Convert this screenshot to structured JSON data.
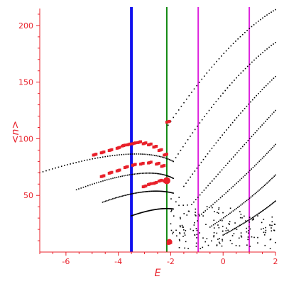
{
  "chart_data": {
    "type": "scatter",
    "xlabel": "E",
    "ylabel": "<n>",
    "xlim": [
      -7,
      2
    ],
    "ylim": [
      0,
      215
    ],
    "x_ticks": [
      -6,
      -4,
      -2,
      0,
      2
    ],
    "y_ticks": [
      50,
      100,
      150,
      200
    ],
    "colors": {
      "axis": "#e8202a",
      "black_points": "#000000",
      "red_points": "#e8202a",
      "blue_line": "#1010ee",
      "green_line": "#118811",
      "magenta_line": "#dd22dd"
    },
    "vertical_lines": [
      {
        "x": -3.5,
        "color": "#1010ee",
        "width": 4
      },
      {
        "x": -2.15,
        "color": "#118811",
        "width": 2
      },
      {
        "x": -0.95,
        "color": "#dd22dd",
        "width": 2
      },
      {
        "x": 1.0,
        "color": "#dd22dd",
        "width": 2
      }
    ],
    "branches": [
      {
        "x0": -7.0,
        "y0": 70,
        "x1": -3.3,
        "y1": 97,
        "x2": -1.9,
        "y2": 80
      },
      {
        "x0": -5.6,
        "y0": 55,
        "x1": -2.9,
        "y1": 78,
        "x1b": -2.9,
        "x2": -1.9,
        "y2": 65
      },
      {
        "x0": -4.6,
        "y0": 44,
        "x1": -2.9,
        "y1": 58,
        "x2": -1.9,
        "y2": 52
      },
      {
        "x0": -3.5,
        "y0": 32,
        "x1": -2.5,
        "y1": 40,
        "x2": -1.9,
        "y2": 38
      }
    ],
    "red_points": [
      {
        "x": -4.9,
        "y": 86
      },
      {
        "x": -4.6,
        "y": 88
      },
      {
        "x": -4.3,
        "y": 90
      },
      {
        "x": -4.0,
        "y": 92
      },
      {
        "x": -3.8,
        "y": 94
      },
      {
        "x": -3.6,
        "y": 95
      },
      {
        "x": -3.4,
        "y": 96
      },
      {
        "x": -3.2,
        "y": 97
      },
      {
        "x": -3.0,
        "y": 96
      },
      {
        "x": -2.8,
        "y": 95
      },
      {
        "x": -2.6,
        "y": 93
      },
      {
        "x": -2.4,
        "y": 90
      },
      {
        "x": -2.2,
        "y": 86
      },
      {
        "x": -4.6,
        "y": 67
      },
      {
        "x": -4.3,
        "y": 70
      },
      {
        "x": -4.0,
        "y": 72
      },
      {
        "x": -3.7,
        "y": 75
      },
      {
        "x": -3.4,
        "y": 77
      },
      {
        "x": -3.1,
        "y": 78
      },
      {
        "x": -2.8,
        "y": 79
      },
      {
        "x": -2.5,
        "y": 78
      },
      {
        "x": -2.3,
        "y": 76
      },
      {
        "x": -3.0,
        "y": 58
      },
      {
        "x": -2.8,
        "y": 60
      },
      {
        "x": -2.6,
        "y": 61
      },
      {
        "x": -2.4,
        "y": 63
      },
      {
        "x": -2.2,
        "y": 63
      },
      {
        "x": -2.05,
        "y": 8
      },
      {
        "x": -2.1,
        "y": 115
      }
    ],
    "markers": [
      {
        "x": -2.15,
        "y": 63,
        "r": 5
      },
      {
        "x": -2.05,
        "y": 9,
        "r": 4
      }
    ]
  }
}
